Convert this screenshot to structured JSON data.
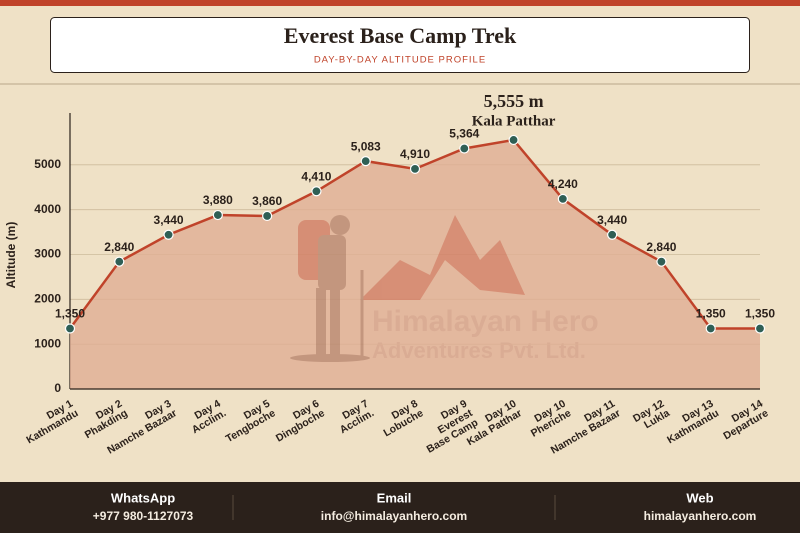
{
  "chart_data": {
    "type": "line",
    "title": "Everest Base Camp Trek",
    "subtitle": "DAY-BY-DAY ALTITUDE PROFILE",
    "y_label": "Altitude (m)",
    "categories": [
      [
        "Day 1",
        "Kathmandu"
      ],
      [
        "Day 2",
        "Phakding"
      ],
      [
        "Day 3",
        "Namche Bazaar"
      ],
      [
        "Day 4",
        "Acclim."
      ],
      [
        "Day 5",
        "Tengboche"
      ],
      [
        "Day 6",
        "Dingboche"
      ],
      [
        "Day 7",
        "Acclim."
      ],
      [
        "Day 8",
        "Lobuche"
      ],
      [
        "Day 9",
        "Everest",
        "Base Camp"
      ],
      [
        "Day 10",
        "Kala Patthar"
      ],
      [
        "Day 10",
        "Pheriche"
      ],
      [
        "Day 11",
        "Namche Bazaar"
      ],
      [
        "Day 12",
        "Lukla"
      ],
      [
        "Day 13",
        "Kathmandu"
      ],
      [
        "Day 14",
        "Departure"
      ]
    ],
    "values": [
      1350,
      2840,
      3440,
      3880,
      3860,
      4410,
      5083,
      4910,
      5364,
      5555,
      4240,
      3440,
      2840,
      1350,
      1350
    ],
    "value_labels": [
      "1,350",
      "2,840",
      "3,440",
      "3,880",
      "3,860",
      "4,410",
      "5,083",
      "4,910",
      "5,364",
      "5,555 m",
      "4,240",
      "3,440",
      "2,840",
      "1,350",
      "1,350"
    ],
    "annotation": "Kala Patthar",
    "color": "#c0432a",
    "marker_color": "#2f5f55",
    "fill_color": "#e0ae93",
    "ylim": [
      0,
      6000
    ],
    "yticks": [
      0,
      1000,
      2000,
      3000,
      4000,
      5000
    ],
    "grid": true,
    "watermark": [
      "Himalayan Hero",
      "Adventures Pvt. Ltd."
    ]
  },
  "footer": [
    {
      "label": "WhatsApp",
      "value": "+977 980-1127073"
    },
    {
      "label": "Email",
      "value": "info@himalayanhero.com"
    },
    {
      "label": "Web",
      "value": "himalayanhero.com"
    }
  ]
}
